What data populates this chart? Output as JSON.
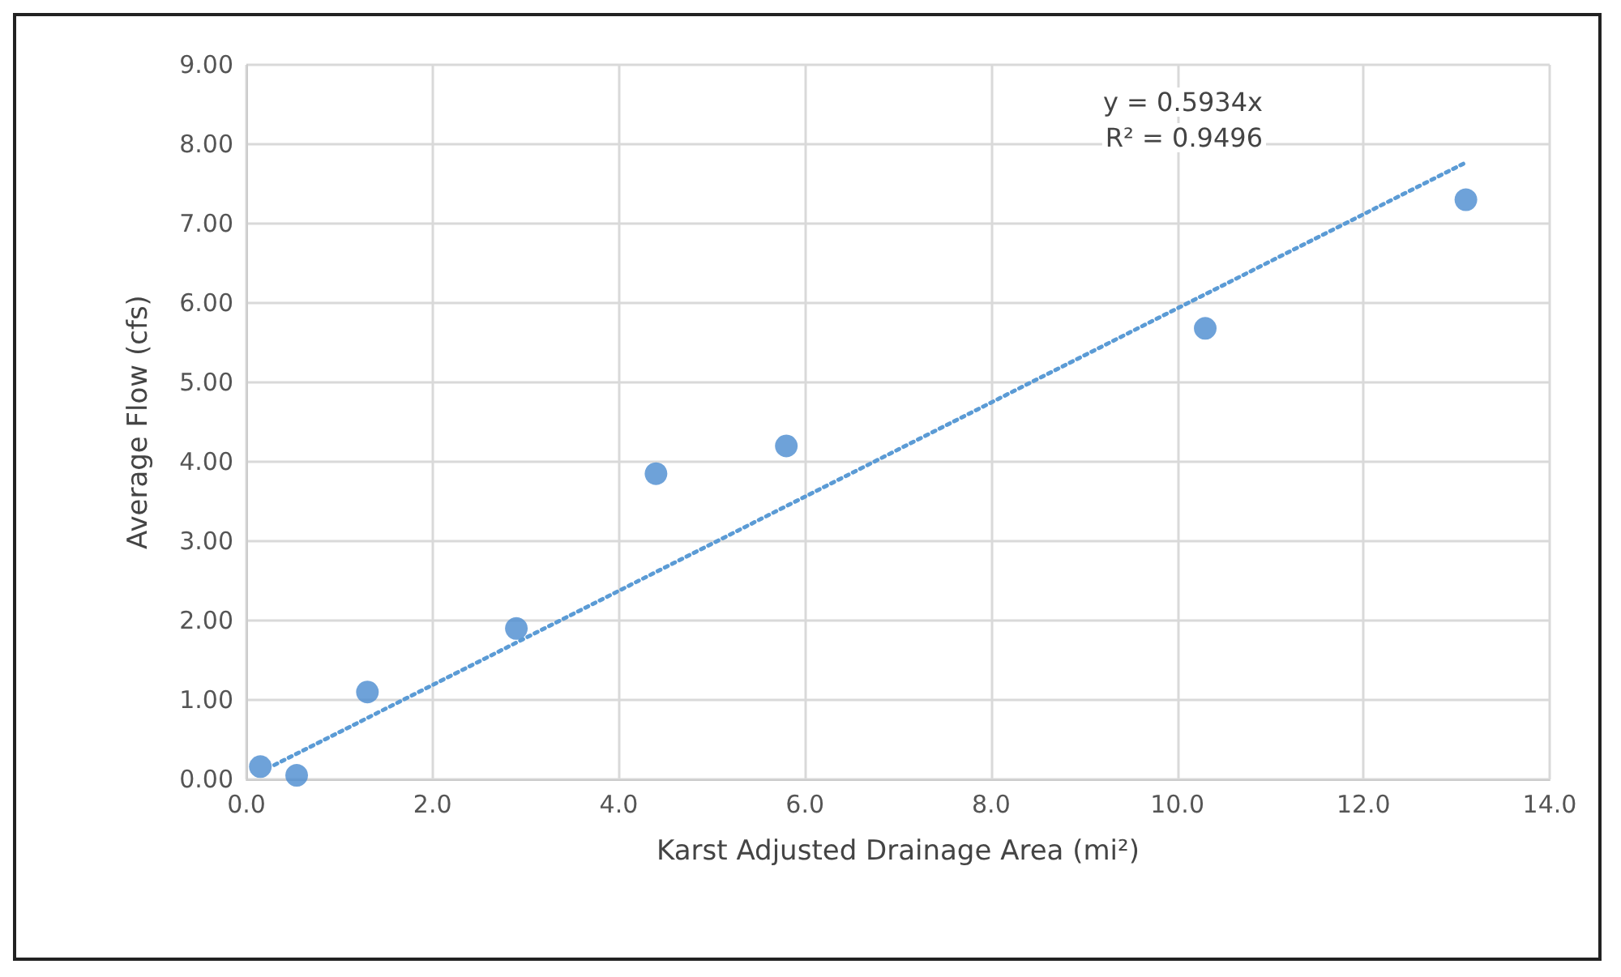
{
  "chart_data": {
    "type": "scatter",
    "xlabel": "Karst Adjusted Drainage Area (mi²)",
    "ylabel": "Average Flow (cfs)",
    "annotations": [
      "y = 0.5934x",
      "R² = 0.9496"
    ],
    "series": [
      {
        "color": "#4a8bcf",
        "marker": "circle",
        "x": [
          0.15,
          0.54,
          1.3,
          2.9,
          4.4,
          5.8,
          10.3,
          13.1
        ],
        "values": [
          0.16,
          0.05,
          1.1,
          1.9,
          3.85,
          4.2,
          5.68,
          7.3
        ]
      },
      {
        "type": "line",
        "color": "#5b9bd5",
        "marker": "none",
        "line_style": "dotted",
        "x": [
          0.3,
          13.1
        ],
        "values": [
          0.18,
          7.77
        ]
      }
    ],
    "xlim": [
      0,
      14
    ],
    "ylim": [
      0,
      9
    ],
    "xticks": [
      {
        "value": 0,
        "label": "0.0"
      },
      {
        "value": 2,
        "label": "2.0"
      },
      {
        "value": 4,
        "label": "4.0"
      },
      {
        "value": 6,
        "label": "6.0"
      },
      {
        "value": 8,
        "label": "8.0"
      },
      {
        "value": 10,
        "label": "10.0"
      },
      {
        "value": 12,
        "label": "12.0"
      },
      {
        "value": 14,
        "label": "14.0"
      }
    ],
    "yticks": [
      {
        "value": 0,
        "label": "0.00"
      },
      {
        "value": 1,
        "label": "1.00"
      },
      {
        "value": 2,
        "label": "2.00"
      },
      {
        "value": 3,
        "label": "3.00"
      },
      {
        "value": 4,
        "label": "4.00"
      },
      {
        "value": 5,
        "label": "5.00"
      },
      {
        "value": 6,
        "label": "6.00"
      },
      {
        "value": 7,
        "label": "7.00"
      },
      {
        "value": 8,
        "label": "8.00"
      },
      {
        "value": 9,
        "label": "9.00"
      }
    ],
    "grid": true
  }
}
